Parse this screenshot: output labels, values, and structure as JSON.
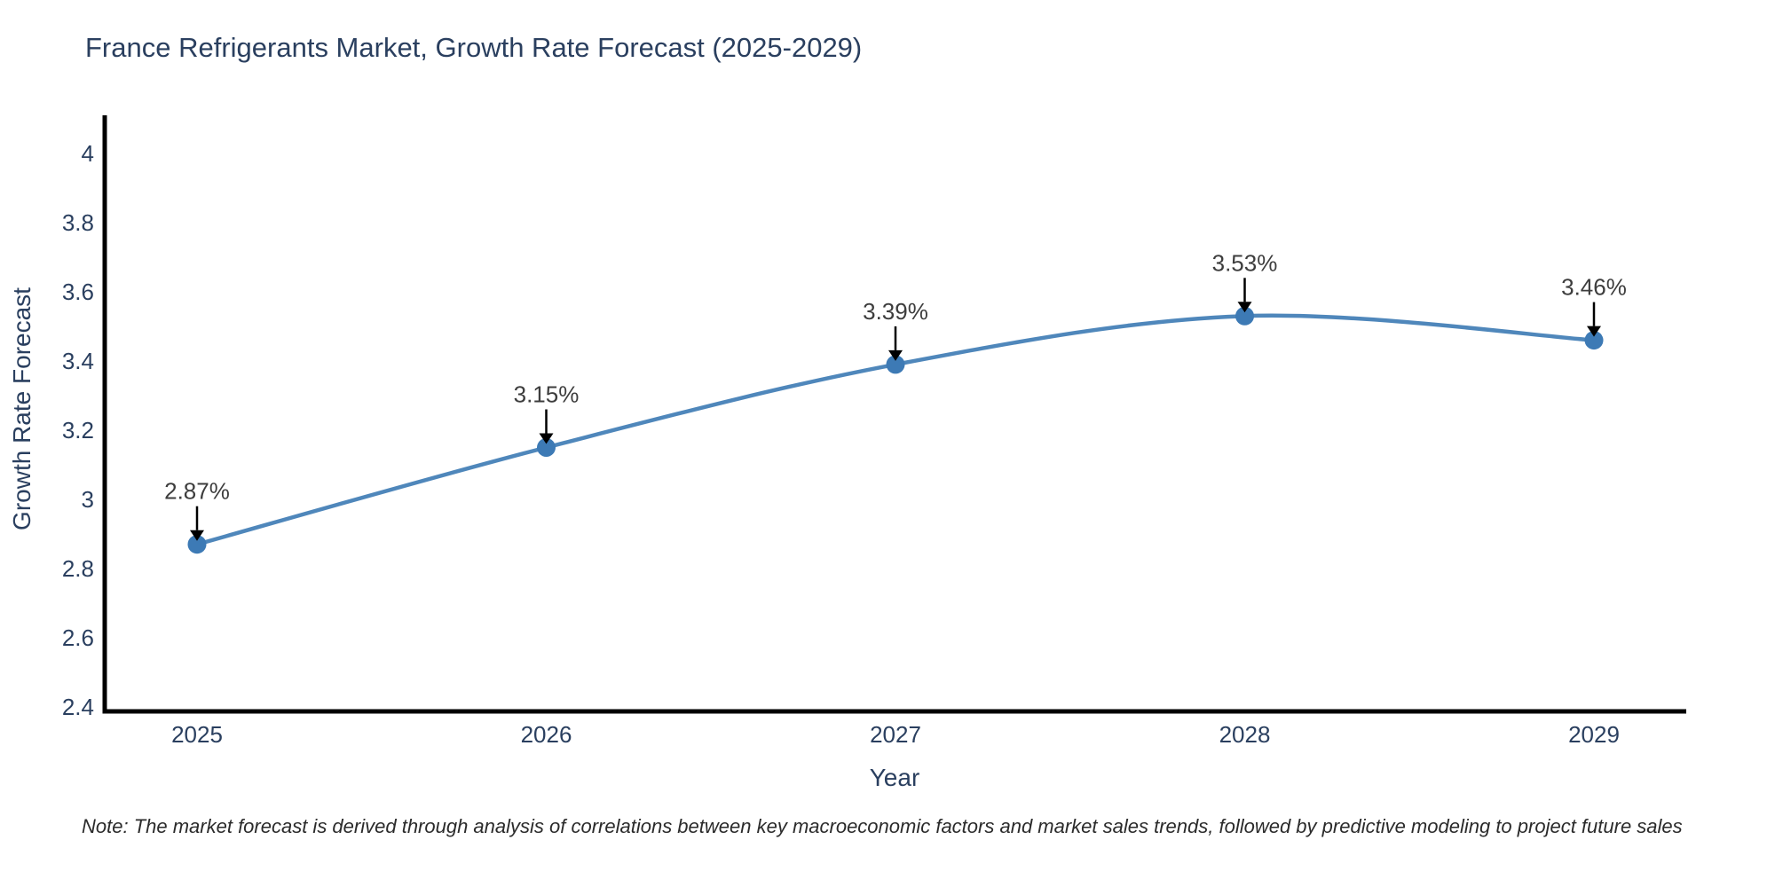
{
  "title": "France Refrigerants Market, Growth Rate Forecast (2025-2029)",
  "note": "Note: The market forecast is derived through analysis of correlations between key macroeconomic factors and market sales trends, followed by predictive modeling to project future sales",
  "chart_data": {
    "type": "line",
    "title": "France Refrigerants Market, Growth Rate Forecast (2025-2029)",
    "xlabel": "Year",
    "ylabel": "Growth Rate Forecast",
    "categories": [
      "2025",
      "2026",
      "2027",
      "2028",
      "2029"
    ],
    "values": [
      2.87,
      3.15,
      3.39,
      3.53,
      3.46
    ],
    "point_labels": [
      "2.87%",
      "3.15%",
      "3.39%",
      "3.53%",
      "3.46%"
    ],
    "ytick_labels": [
      "4",
      "3.8",
      "3.6",
      "3.4",
      "3.2",
      "3",
      "2.8",
      "2.6",
      "2.4"
    ],
    "yticks": [
      4,
      3.8,
      3.6,
      3.4,
      3.2,
      3,
      2.8,
      2.6,
      2.4
    ],
    "ylim": [
      2.4,
      4.05
    ],
    "grid": false,
    "legend": "none",
    "smooth": true,
    "line_color": "#4f87bb",
    "marker_color": "#3d7ab5",
    "arrow_color": "#000000",
    "axis_line_color": "#000000",
    "axis_text_color": "#2a3f5f",
    "annotation_text_color": "#3d3d3d"
  }
}
